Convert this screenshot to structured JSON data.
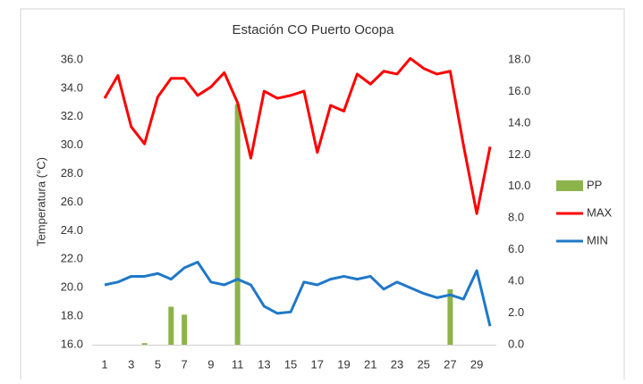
{
  "chart_data": {
    "type": "combo",
    "title": "Estación CO Puerto Ocopa",
    "ylabel": "Temperatura (°C)",
    "categories": [
      1,
      null,
      3,
      null,
      5,
      null,
      7,
      null,
      9,
      null,
      11,
      null,
      13,
      null,
      15,
      null,
      17,
      null,
      19,
      null,
      21,
      null,
      23,
      null,
      25,
      null,
      27,
      null,
      29,
      null
    ],
    "series": [
      {
        "name": "PP",
        "type": "bar",
        "axis": "y2",
        "color": "#8cb44a",
        "values": [
          0,
          0,
          0,
          0.1,
          0,
          2.4,
          1.9,
          0,
          0,
          0,
          15.2,
          0,
          0,
          0,
          0,
          0,
          0,
          0,
          0,
          0,
          0,
          0,
          0,
          0,
          0,
          0,
          3.5,
          0,
          0,
          0
        ]
      },
      {
        "name": "MAX",
        "type": "line",
        "color": "#ff0000",
        "values": [
          33.3,
          34.9,
          31.3,
          30.1,
          33.4,
          34.7,
          34.7,
          33.5,
          34.1,
          35.1,
          33.0,
          29.1,
          33.8,
          33.3,
          33.5,
          33.8,
          29.5,
          32.8,
          32.4,
          35.0,
          34.3,
          35.2,
          35.0,
          36.1,
          35.4,
          35.0,
          35.2,
          30.0,
          25.2,
          29.9
        ]
      },
      {
        "name": "MIN",
        "type": "line",
        "color": "#1f78c8",
        "values": [
          20.2,
          20.4,
          20.8,
          20.8,
          21.0,
          20.6,
          21.4,
          21.8,
          20.4,
          20.2,
          20.6,
          20.2,
          18.7,
          18.2,
          18.3,
          20.4,
          20.2,
          20.6,
          20.8,
          20.6,
          20.8,
          19.9,
          20.4,
          20.0,
          19.6,
          19.3,
          19.5,
          19.2,
          21.2,
          17.3
        ]
      }
    ],
    "ylim": [
      16,
      36
    ],
    "yticks": [
      {
        "value": 16,
        "label": "16.0"
      },
      {
        "value": 18,
        "label": "18.0"
      },
      {
        "value": 20,
        "label": "20.0"
      },
      {
        "value": 22,
        "label": "22.0"
      },
      {
        "value": 24,
        "label": "24.0"
      },
      {
        "value": 26,
        "label": "26.0"
      },
      {
        "value": 28,
        "label": "28.0"
      },
      {
        "value": 30,
        "label": "30.0"
      },
      {
        "value": 32,
        "label": "32.0"
      },
      {
        "value": 34,
        "label": "34.0"
      },
      {
        "value": 36,
        "label": "36.0"
      }
    ],
    "y2lim": [
      0,
      18
    ],
    "y2ticks": [
      {
        "value": 0,
        "label": "0.0"
      },
      {
        "value": 2,
        "label": "2.0"
      },
      {
        "value": 4,
        "label": "4.0"
      },
      {
        "value": 6,
        "label": "6.0"
      },
      {
        "value": 8,
        "label": "8.0"
      },
      {
        "value": 10,
        "label": "10.0"
      },
      {
        "value": 12,
        "label": "12.0"
      },
      {
        "value": 14,
        "label": "14.0"
      },
      {
        "value": 16,
        "label": "16.0"
      },
      {
        "value": 18,
        "label": "18.0"
      }
    ],
    "legend": "right"
  }
}
